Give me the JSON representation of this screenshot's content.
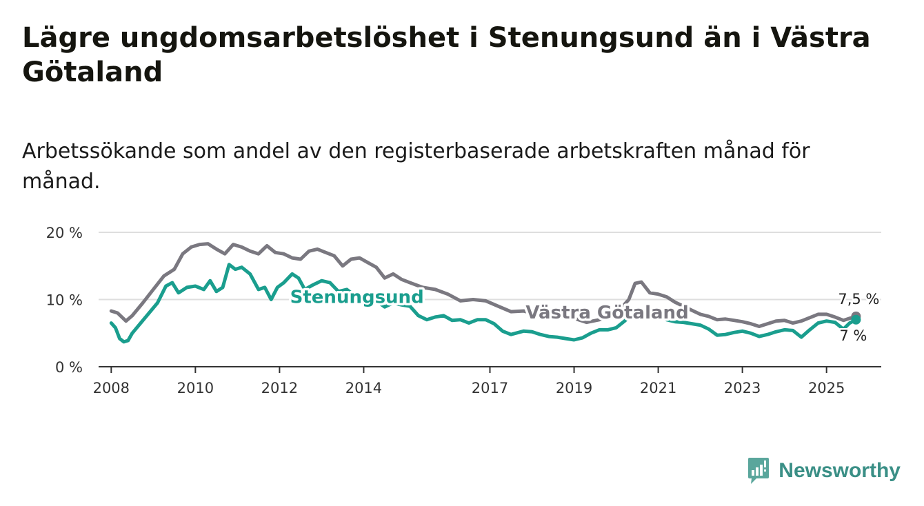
{
  "title": "Lägre ungdomsarbetslöshet i Stenungsund än i Västra Götaland",
  "subtitle": "Arbetssökande som andel av den registerbaserade arbetskraften månad för månad.",
  "brand": {
    "name": "Newsworthy"
  },
  "colors": {
    "stenungsund": "#1a9e8e",
    "vastra": "#7a7880",
    "grid": "#dedede",
    "axis": "#333333",
    "brand": "#3a8f86"
  },
  "chart_data": {
    "type": "line",
    "title": "Lägre ungdomsarbetslöshet i Stenungsund än i Västra Götaland",
    "xlabel": "",
    "ylabel": "",
    "ylim": [
      0,
      20
    ],
    "xlim": [
      2007.7,
      2026.3
    ],
    "y_ticks": [
      0,
      10,
      20
    ],
    "y_tick_labels": [
      "0 %",
      "10 %",
      "20 %"
    ],
    "x_ticks": [
      2008,
      2010,
      2012,
      2014,
      2017,
      2019,
      2021,
      2023,
      2025
    ],
    "x_tick_labels": [
      "2008",
      "2010",
      "2012",
      "2014",
      "2017",
      "2019",
      "2021",
      "2023",
      "2025"
    ],
    "grid": true,
    "series": [
      {
        "name": "Västra Götaland",
        "label": "Västra Götaland",
        "end_label": "7,5 %",
        "points": [
          [
            2008.0,
            8.3
          ],
          [
            2008.15,
            8.0
          ],
          [
            2008.35,
            6.8
          ],
          [
            2008.5,
            7.6
          ],
          [
            2008.75,
            9.5
          ],
          [
            2009.0,
            11.5
          ],
          [
            2009.25,
            13.5
          ],
          [
            2009.5,
            14.5
          ],
          [
            2009.7,
            16.8
          ],
          [
            2009.9,
            17.8
          ],
          [
            2010.1,
            18.2
          ],
          [
            2010.3,
            18.3
          ],
          [
            2010.5,
            17.5
          ],
          [
            2010.7,
            16.8
          ],
          [
            2010.9,
            18.2
          ],
          [
            2011.1,
            17.8
          ],
          [
            2011.3,
            17.2
          ],
          [
            2011.5,
            16.8
          ],
          [
            2011.7,
            18.0
          ],
          [
            2011.9,
            17.0
          ],
          [
            2012.1,
            16.8
          ],
          [
            2012.3,
            16.2
          ],
          [
            2012.5,
            16.0
          ],
          [
            2012.7,
            17.2
          ],
          [
            2012.9,
            17.5
          ],
          [
            2013.1,
            17.0
          ],
          [
            2013.3,
            16.5
          ],
          [
            2013.5,
            15.0
          ],
          [
            2013.7,
            16.0
          ],
          [
            2013.9,
            16.2
          ],
          [
            2014.1,
            15.5
          ],
          [
            2014.3,
            14.8
          ],
          [
            2014.5,
            13.2
          ],
          [
            2014.7,
            13.8
          ],
          [
            2014.9,
            13.0
          ],
          [
            2015.1,
            12.5
          ],
          [
            2015.4,
            11.8
          ],
          [
            2015.7,
            11.5
          ],
          [
            2016.0,
            10.8
          ],
          [
            2016.3,
            9.8
          ],
          [
            2016.6,
            10.0
          ],
          [
            2016.9,
            9.8
          ],
          [
            2017.2,
            9.0
          ],
          [
            2017.5,
            8.2
          ],
          [
            2017.8,
            8.3
          ],
          [
            2018.1,
            7.8
          ],
          [
            2018.4,
            7.5
          ],
          [
            2018.7,
            7.6
          ],
          [
            2019.0,
            7.2
          ],
          [
            2019.3,
            6.6
          ],
          [
            2019.6,
            7.0
          ],
          [
            2019.9,
            7.6
          ],
          [
            2020.1,
            8.6
          ],
          [
            2020.3,
            10.0
          ],
          [
            2020.45,
            12.4
          ],
          [
            2020.6,
            12.6
          ],
          [
            2020.8,
            11.0
          ],
          [
            2021.0,
            10.8
          ],
          [
            2021.2,
            10.4
          ],
          [
            2021.4,
            9.6
          ],
          [
            2021.6,
            9.0
          ],
          [
            2021.8,
            8.4
          ],
          [
            2022.0,
            7.8
          ],
          [
            2022.2,
            7.5
          ],
          [
            2022.4,
            7.0
          ],
          [
            2022.6,
            7.1
          ],
          [
            2022.8,
            6.9
          ],
          [
            2023.0,
            6.7
          ],
          [
            2023.2,
            6.4
          ],
          [
            2023.4,
            6.0
          ],
          [
            2023.6,
            6.4
          ],
          [
            2023.8,
            6.8
          ],
          [
            2024.0,
            6.9
          ],
          [
            2024.2,
            6.5
          ],
          [
            2024.4,
            6.8
          ],
          [
            2024.6,
            7.3
          ],
          [
            2024.8,
            7.8
          ],
          [
            2025.0,
            7.8
          ],
          [
            2025.2,
            7.4
          ],
          [
            2025.4,
            6.9
          ],
          [
            2025.55,
            7.2
          ],
          [
            2025.7,
            7.5
          ]
        ]
      },
      {
        "name": "Stenungsund",
        "label": "Stenungsund",
        "end_label": "7 %",
        "points": [
          [
            2008.0,
            6.5
          ],
          [
            2008.1,
            5.8
          ],
          [
            2008.2,
            4.2
          ],
          [
            2008.3,
            3.7
          ],
          [
            2008.4,
            3.9
          ],
          [
            2008.5,
            5.0
          ],
          [
            2008.7,
            6.5
          ],
          [
            2008.9,
            8.0
          ],
          [
            2009.1,
            9.5
          ],
          [
            2009.3,
            12.0
          ],
          [
            2009.45,
            12.5
          ],
          [
            2009.6,
            11.0
          ],
          [
            2009.8,
            11.8
          ],
          [
            2010.0,
            12.0
          ],
          [
            2010.2,
            11.5
          ],
          [
            2010.35,
            12.8
          ],
          [
            2010.5,
            11.2
          ],
          [
            2010.65,
            11.8
          ],
          [
            2010.8,
            15.2
          ],
          [
            2010.95,
            14.5
          ],
          [
            2011.1,
            14.8
          ],
          [
            2011.3,
            13.8
          ],
          [
            2011.5,
            11.5
          ],
          [
            2011.65,
            11.8
          ],
          [
            2011.8,
            10.0
          ],
          [
            2011.95,
            11.8
          ],
          [
            2012.1,
            12.5
          ],
          [
            2012.3,
            13.8
          ],
          [
            2012.45,
            13.2
          ],
          [
            2012.6,
            11.5
          ],
          [
            2012.8,
            12.2
          ],
          [
            2013.0,
            12.8
          ],
          [
            2013.2,
            12.5
          ],
          [
            2013.4,
            11.2
          ],
          [
            2013.6,
            11.5
          ],
          [
            2013.8,
            10.5
          ],
          [
            2014.0,
            10.2
          ],
          [
            2014.3,
            9.8
          ],
          [
            2014.5,
            8.9
          ],
          [
            2014.7,
            9.5
          ],
          [
            2014.9,
            9.2
          ],
          [
            2015.1,
            9.0
          ],
          [
            2015.3,
            7.6
          ],
          [
            2015.5,
            7.0
          ],
          [
            2015.7,
            7.4
          ],
          [
            2015.9,
            7.6
          ],
          [
            2016.1,
            6.9
          ],
          [
            2016.3,
            7.0
          ],
          [
            2016.5,
            6.5
          ],
          [
            2016.7,
            7.0
          ],
          [
            2016.9,
            7.0
          ],
          [
            2017.1,
            6.4
          ],
          [
            2017.3,
            5.3
          ],
          [
            2017.5,
            4.8
          ],
          [
            2017.8,
            5.3
          ],
          [
            2018.0,
            5.2
          ],
          [
            2018.2,
            4.8
          ],
          [
            2018.4,
            4.5
          ],
          [
            2018.6,
            4.4
          ],
          [
            2018.8,
            4.2
          ],
          [
            2019.0,
            4.0
          ],
          [
            2019.2,
            4.3
          ],
          [
            2019.4,
            5.0
          ],
          [
            2019.6,
            5.5
          ],
          [
            2019.8,
            5.5
          ],
          [
            2020.0,
            5.8
          ],
          [
            2020.2,
            6.8
          ],
          [
            2020.4,
            8.0
          ],
          [
            2020.6,
            8.5
          ],
          [
            2020.8,
            8.2
          ],
          [
            2021.0,
            7.8
          ],
          [
            2021.2,
            7.0
          ],
          [
            2021.4,
            6.7
          ],
          [
            2021.6,
            6.6
          ],
          [
            2021.8,
            6.4
          ],
          [
            2022.0,
            6.2
          ],
          [
            2022.2,
            5.6
          ],
          [
            2022.4,
            4.7
          ],
          [
            2022.6,
            4.8
          ],
          [
            2022.8,
            5.1
          ],
          [
            2023.0,
            5.3
          ],
          [
            2023.2,
            5.0
          ],
          [
            2023.4,
            4.5
          ],
          [
            2023.6,
            4.8
          ],
          [
            2023.8,
            5.2
          ],
          [
            2024.0,
            5.5
          ],
          [
            2024.2,
            5.4
          ],
          [
            2024.4,
            4.4
          ],
          [
            2024.6,
            5.5
          ],
          [
            2024.8,
            6.5
          ],
          [
            2025.0,
            6.8
          ],
          [
            2025.2,
            6.6
          ],
          [
            2025.4,
            5.6
          ],
          [
            2025.55,
            6.5
          ],
          [
            2025.7,
            7.0
          ]
        ]
      }
    ]
  }
}
